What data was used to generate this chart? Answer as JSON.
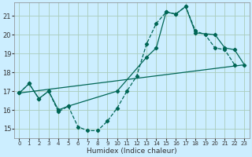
{
  "title": "",
  "xlabel": "Humidex (Indice chaleur)",
  "bg_color": "#cceeff",
  "grid_color": "#aaccbb",
  "line_color": "#006655",
  "xlim": [
    -0.5,
    23.5
  ],
  "ylim": [
    14.5,
    21.7
  ],
  "yticks": [
    15,
    16,
    17,
    18,
    19,
    20,
    21
  ],
  "xticks": [
    0,
    1,
    2,
    3,
    4,
    5,
    6,
    7,
    8,
    9,
    10,
    11,
    12,
    13,
    14,
    15,
    16,
    17,
    18,
    19,
    20,
    21,
    22,
    23
  ],
  "series1_x": [
    0,
    1,
    2,
    3,
    4,
    5,
    6,
    7,
    8,
    9,
    10,
    11,
    12,
    13,
    14,
    15,
    16,
    17,
    18,
    19,
    20,
    21,
    22
  ],
  "series1_y": [
    16.9,
    17.4,
    16.6,
    17.0,
    15.9,
    16.2,
    15.1,
    14.9,
    14.9,
    15.4,
    16.1,
    17.0,
    17.8,
    19.5,
    20.6,
    21.2,
    21.1,
    21.5,
    20.2,
    20.0,
    19.3,
    19.2,
    18.4
  ],
  "series2_x": [
    0,
    1,
    2,
    3,
    4,
    5,
    10,
    13,
    14,
    15,
    16,
    17,
    18,
    20,
    21,
    22,
    23
  ],
  "series2_y": [
    16.9,
    17.4,
    16.6,
    17.0,
    16.0,
    16.2,
    17.0,
    18.8,
    19.3,
    21.2,
    21.1,
    21.5,
    20.1,
    20.0,
    19.3,
    19.2,
    18.4
  ],
  "series3_x": [
    0,
    23
  ],
  "series3_y": [
    16.9,
    18.4
  ]
}
